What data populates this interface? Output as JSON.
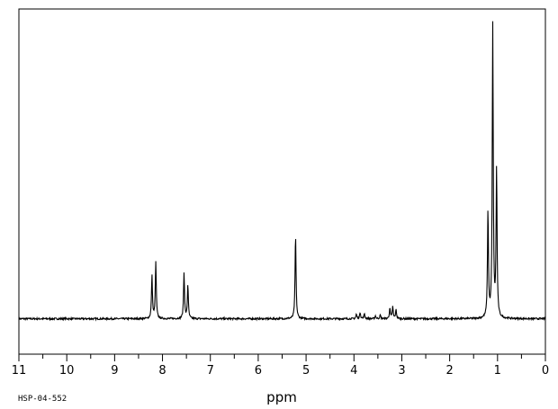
{
  "chart_data": {
    "type": "line",
    "title": "",
    "xlabel": "ppm",
    "ylabel": "",
    "x_reversed": true,
    "xlim": [
      11,
      0
    ],
    "ylim": [
      -0.12,
      1.05
    ],
    "grid": false,
    "legend": "none",
    "sample_id": "HSP-04-552",
    "x_ticks": [
      11,
      10,
      9,
      8,
      7,
      6,
      5,
      4,
      3,
      2,
      1,
      0
    ],
    "x_tick_labels": [
      "11",
      "10",
      "9",
      "8",
      "7",
      "6",
      "5",
      "4",
      "3",
      "2",
      "1",
      "0"
    ],
    "series": [
      {
        "peaks": [
          {
            "ppm": 8.22,
            "height": 0.145
          },
          {
            "ppm": 8.14,
            "height": 0.19
          },
          {
            "ppm": 7.55,
            "height": 0.155
          },
          {
            "ppm": 7.47,
            "height": 0.115
          },
          {
            "ppm": 5.22,
            "height": 0.285
          },
          {
            "ppm": 3.95,
            "height": 0.015
          },
          {
            "ppm": 3.87,
            "height": 0.022
          },
          {
            "ppm": 3.78,
            "height": 0.017
          },
          {
            "ppm": 3.55,
            "height": 0.01
          },
          {
            "ppm": 3.45,
            "height": 0.012
          },
          {
            "ppm": 3.25,
            "height": 0.035
          },
          {
            "ppm": 3.19,
            "height": 0.04
          },
          {
            "ppm": 3.12,
            "height": 0.03
          },
          {
            "ppm": 1.2,
            "height": 0.36
          },
          {
            "ppm": 1.1,
            "height": 0.99
          },
          {
            "ppm": 1.02,
            "height": 0.5
          }
        ]
      }
    ]
  }
}
